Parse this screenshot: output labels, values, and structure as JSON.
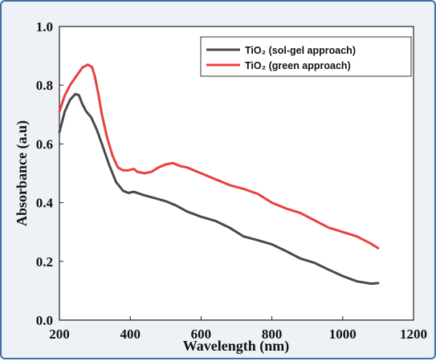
{
  "chart_data": {
    "type": "line",
    "xlabel": "Wavelength (nm)",
    "ylabel": "Absorbance (a.u)",
    "xlim": [
      200,
      1200
    ],
    "ylim": [
      0.0,
      1.0
    ],
    "x_ticks": [
      "200",
      "400",
      "600",
      "800",
      "1000",
      "1200"
    ],
    "y_ticks": [
      "0.0",
      "0.2",
      "0.4",
      "0.6",
      "0.8",
      "1.0"
    ],
    "grid": false,
    "legend_position": "top-right",
    "series": [
      {
        "name": "TiO₂ (sol-gel approach)",
        "color": "#4a4a4a",
        "x": [
          200,
          215,
          230,
          245,
          255,
          265,
          275,
          290,
          305,
          320,
          340,
          360,
          380,
          395,
          410,
          420,
          440,
          470,
          500,
          530,
          560,
          600,
          640,
          680,
          720,
          760,
          800,
          840,
          880,
          920,
          960,
          1000,
          1040,
          1080,
          1100
        ],
        "y": [
          0.64,
          0.71,
          0.75,
          0.77,
          0.766,
          0.735,
          0.712,
          0.69,
          0.65,
          0.6,
          0.53,
          0.47,
          0.44,
          0.433,
          0.437,
          0.433,
          0.425,
          0.415,
          0.405,
          0.39,
          0.37,
          0.352,
          0.338,
          0.315,
          0.285,
          0.272,
          0.258,
          0.235,
          0.21,
          0.195,
          0.172,
          0.15,
          0.132,
          0.124,
          0.126
        ]
      },
      {
        "name": "TiO₂ (green approach)",
        "color": "#e8413f",
        "x": [
          200,
          215,
          230,
          250,
          265,
          280,
          292,
          300,
          310,
          320,
          335,
          350,
          365,
          380,
          395,
          410,
          420,
          440,
          460,
          480,
          500,
          520,
          540,
          560,
          600,
          640,
          680,
          720,
          760,
          800,
          840,
          880,
          920,
          960,
          1000,
          1040,
          1080,
          1100
        ],
        "y": [
          0.71,
          0.765,
          0.8,
          0.835,
          0.86,
          0.87,
          0.862,
          0.83,
          0.77,
          0.7,
          0.62,
          0.56,
          0.52,
          0.51,
          0.51,
          0.515,
          0.505,
          0.5,
          0.505,
          0.52,
          0.53,
          0.535,
          0.525,
          0.52,
          0.5,
          0.48,
          0.46,
          0.447,
          0.43,
          0.4,
          0.38,
          0.365,
          0.34,
          0.315,
          0.3,
          0.285,
          0.26,
          0.245
        ]
      }
    ]
  }
}
